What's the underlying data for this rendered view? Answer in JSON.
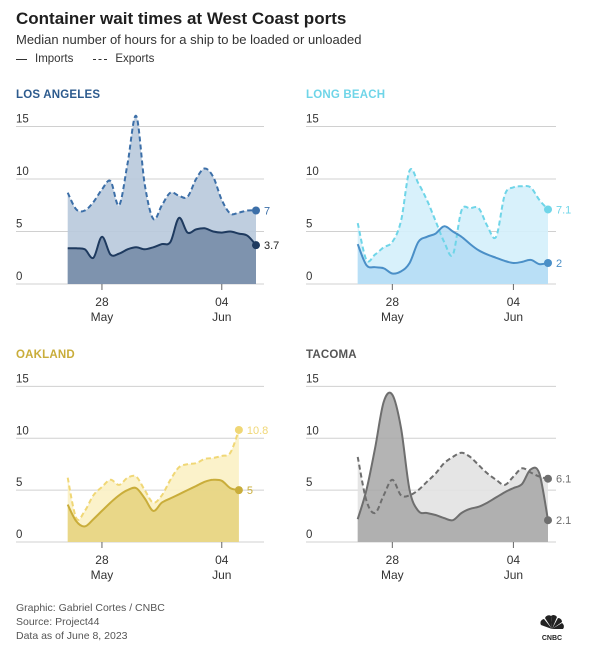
{
  "header": {
    "title": "Container wait times at West Coast ports",
    "subtitle": "Median number of hours for a ship to be loaded or unloaded",
    "legend_imports": "Imports",
    "legend_exports": "Exports"
  },
  "footer": {
    "credit": "Graphic: Gabriel Cortes / CNBC",
    "source": "Source: Project44",
    "asof": "Data as of June 8, 2023"
  },
  "logo_text": "CNBC",
  "chart_data": [
    {
      "type": "area",
      "title": "LOS ANGELES",
      "color_imports": "#1e3a5f",
      "color_exports": "#3c6fa8",
      "fill_exports": "#b8c9dc",
      "fill_imports": "#7288a6",
      "yticks": [
        0,
        5,
        10,
        15
      ],
      "ylim": [
        0,
        16
      ],
      "x_tick_labels": [
        [
          "28",
          "May"
        ],
        [
          "04",
          "Jun"
        ]
      ],
      "x_ticks": [
        28,
        35
      ],
      "xlim": [
        25.9,
        37.0
      ],
      "series": [
        {
          "name": "Exports",
          "x": [
            26,
            26.5,
            27,
            27.5,
            28,
            28.5,
            29,
            29.5,
            30,
            30.5,
            31,
            31.5,
            32,
            32.5,
            33,
            33.5,
            34,
            34.5,
            35,
            35.5,
            36,
            36.5,
            37
          ],
          "values": [
            8.7,
            7.1,
            7.0,
            7.8,
            9.0,
            9.8,
            7.5,
            11.5,
            16.0,
            9.5,
            6.2,
            7.5,
            8.7,
            8.4,
            8.3,
            10.0,
            11.0,
            10.2,
            8.0,
            6.7,
            6.8,
            7.0,
            7.0
          ],
          "end_label": "7"
        },
        {
          "name": "Imports",
          "x": [
            26,
            26.5,
            27,
            27.5,
            28,
            28.5,
            29,
            29.5,
            30,
            30.5,
            31,
            31.5,
            32,
            32.5,
            33,
            33.5,
            34,
            34.5,
            35,
            35.5,
            36,
            36.5,
            37
          ],
          "values": [
            3.4,
            3.4,
            3.3,
            2.5,
            4.5,
            2.8,
            2.9,
            3.3,
            3.5,
            3.3,
            3.5,
            3.8,
            4.0,
            6.3,
            4.9,
            5.2,
            5.3,
            5.0,
            4.9,
            5.0,
            4.8,
            4.6,
            3.7
          ],
          "end_label": "3.7"
        }
      ]
    },
    {
      "type": "area",
      "title": "LONG BEACH",
      "color_imports": "#4a8fc7",
      "color_exports": "#6fd5e8",
      "fill_exports": "#d4f0fb",
      "fill_imports": "#b4dcf5",
      "yticks": [
        0,
        5,
        10,
        15
      ],
      "ylim": [
        0,
        16
      ],
      "x_tick_labels": [
        [
          "28",
          "May"
        ],
        [
          "04",
          "Jun"
        ]
      ],
      "x_ticks": [
        28,
        35
      ],
      "xlim": [
        25.9,
        37.0
      ],
      "series": [
        {
          "name": "Exports",
          "x": [
            26,
            26.5,
            27,
            27.5,
            28,
            28.5,
            29,
            29.5,
            30,
            30.5,
            31,
            31.5,
            32,
            32.5,
            33,
            33.5,
            34,
            34.5,
            35,
            35.5,
            36,
            36.5,
            37
          ],
          "values": [
            5.8,
            2.3,
            2.8,
            3.5,
            4.0,
            6.0,
            10.8,
            9.6,
            8.0,
            6.0,
            4.0,
            2.8,
            7.0,
            7.2,
            7.2,
            5.5,
            4.5,
            8.5,
            9.2,
            9.3,
            9.2,
            8.0,
            7.1
          ],
          "end_label": "7.1"
        },
        {
          "name": "Imports",
          "x": [
            26,
            26.5,
            27,
            27.5,
            28,
            28.5,
            29,
            29.5,
            30,
            30.5,
            31,
            31.5,
            32,
            32.5,
            33,
            33.5,
            34,
            34.5,
            35,
            35.5,
            36,
            36.5,
            37
          ],
          "values": [
            3.8,
            1.8,
            1.6,
            1.5,
            1.0,
            1.2,
            2.0,
            4.0,
            4.5,
            4.8,
            5.5,
            5.0,
            4.5,
            3.8,
            3.2,
            2.8,
            2.5,
            2.2,
            2.0,
            2.1,
            2.3,
            1.9,
            2.0
          ],
          "end_label": "2"
        }
      ]
    },
    {
      "type": "area",
      "title": "OAKLAND",
      "color_imports": "#c9ad3a",
      "color_exports": "#f0d776",
      "fill_exports": "#fbf1c4",
      "fill_imports": "#e5d27d",
      "yticks": [
        0,
        5,
        10,
        15
      ],
      "ylim": [
        0,
        16
      ],
      "x_tick_labels": [
        [
          "28",
          "May"
        ],
        [
          "04",
          "Jun"
        ]
      ],
      "x_ticks": [
        28,
        35
      ],
      "xlim": [
        25.9,
        37.0
      ],
      "series": [
        {
          "name": "Exports",
          "x": [
            26,
            26.5,
            27,
            27.5,
            28,
            28.5,
            29,
            29.5,
            30,
            30.5,
            31,
            31.5,
            32,
            32.5,
            33,
            33.5,
            34,
            34.5,
            35,
            35.5,
            36
          ],
          "values": [
            6.2,
            2.3,
            3.0,
            4.5,
            5.3,
            6.0,
            5.5,
            6.2,
            6.3,
            5.0,
            3.8,
            4.5,
            6.0,
            7.2,
            7.5,
            7.6,
            8.0,
            8.1,
            8.3,
            8.6,
            10.8
          ],
          "end_label": "10.8"
        },
        {
          "name": "Imports",
          "x": [
            26,
            26.5,
            27,
            27.5,
            28,
            28.5,
            29,
            29.5,
            30,
            30.5,
            31,
            31.5,
            32,
            32.5,
            33,
            33.5,
            34,
            34.5,
            35,
            35.5,
            36
          ],
          "values": [
            3.6,
            2.0,
            1.5,
            2.2,
            3.0,
            3.8,
            4.5,
            5.0,
            5.2,
            4.2,
            3.0,
            3.8,
            4.2,
            4.6,
            5.0,
            5.4,
            5.8,
            6.0,
            5.9,
            5.2,
            5.0
          ],
          "end_label": "5"
        }
      ]
    },
    {
      "type": "area",
      "title": "TACOMA",
      "color_imports": "#6e6e6e",
      "color_exports": "#6e6e6e",
      "fill_exports": "#e2e2e2",
      "fill_imports": "#a7a7a7",
      "yticks": [
        0,
        5,
        10,
        15
      ],
      "ylim": [
        0,
        16
      ],
      "x_tick_labels": [
        [
          "28",
          "May"
        ],
        [
          "04",
          "Jun"
        ]
      ],
      "x_ticks": [
        28,
        35
      ],
      "xlim": [
        25.9,
        37.0
      ],
      "series": [
        {
          "name": "Exports",
          "x": [
            26,
            26.5,
            27,
            27.5,
            28,
            28.5,
            29,
            29.5,
            30,
            30.5,
            31,
            31.5,
            32,
            32.5,
            33,
            33.5,
            34,
            34.5,
            35,
            35.5,
            36,
            36.5,
            37
          ],
          "values": [
            8.2,
            4.0,
            2.8,
            4.5,
            6.0,
            4.5,
            4.5,
            5.0,
            5.8,
            6.6,
            7.6,
            8.2,
            8.6,
            8.2,
            7.4,
            6.6,
            6.0,
            5.5,
            6.3,
            7.1,
            6.7,
            6.3,
            6.1
          ],
          "end_label": "6.1"
        },
        {
          "name": "Imports",
          "x": [
            26,
            26.5,
            27,
            27.5,
            28,
            28.5,
            29,
            29.5,
            30,
            30.5,
            31,
            31.5,
            32,
            32.5,
            33,
            33.5,
            34,
            34.5,
            35,
            35.5,
            36,
            36.5,
            37
          ],
          "values": [
            2.2,
            5.0,
            9.0,
            13.5,
            14.2,
            11.0,
            5.0,
            3.0,
            2.8,
            2.6,
            2.3,
            2.1,
            2.8,
            3.2,
            3.4,
            3.8,
            4.3,
            4.8,
            5.2,
            5.6,
            7.0,
            6.6,
            2.1
          ],
          "end_label": "2.1"
        }
      ]
    }
  ]
}
